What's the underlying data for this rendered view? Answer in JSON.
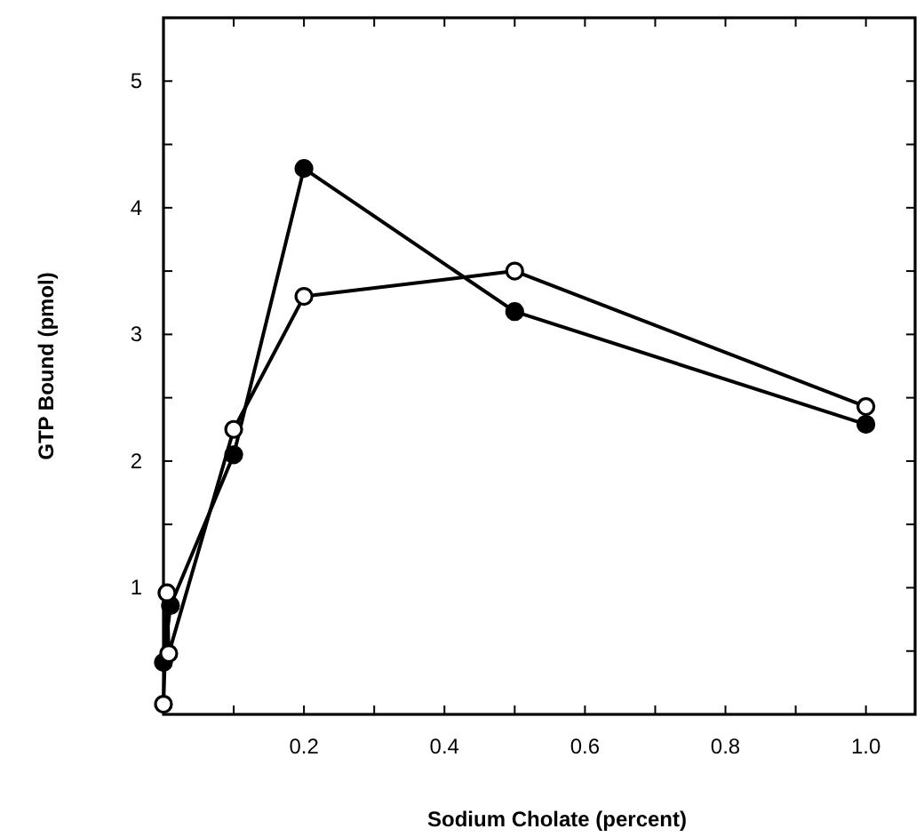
{
  "chart_data": {
    "type": "line",
    "xlabel": "Sodium Cholate (percent)",
    "ylabel": "GTP Bound (pmol)",
    "xlim": [
      0,
      1.07
    ],
    "ylim": [
      0,
      5.5
    ],
    "xticks": [
      {
        "value": 0.1,
        "label": null
      },
      0.2,
      {
        "value": 0.3,
        "label": null
      },
      0.4,
      {
        "value": 0.5,
        "label": null
      },
      0.6,
      {
        "value": 0.7,
        "label": null
      },
      0.8,
      {
        "value": 0.9,
        "label": null
      },
      {
        "value": 1,
        "label": "1.0"
      }
    ],
    "yticks": [
      {
        "value": 0.5,
        "label": null
      },
      1,
      {
        "value": 1.5,
        "label": null
      },
      2,
      {
        "value": 2.5,
        "label": null
      },
      3,
      {
        "value": 3.5,
        "label": null
      },
      4,
      {
        "value": 4.5,
        "label": null
      },
      5
    ],
    "grid": false,
    "series": [
      {
        "color": "#000000",
        "marker": "circle",
        "x": [
          0,
          0.01,
          0.1,
          0.2,
          0.5,
          1.0
        ],
        "values": [
          0.41,
          0.86,
          2.05,
          4.31,
          3.18,
          2.29
        ]
      },
      {
        "color": "#000000",
        "marker": "circle",
        "x": [
          0,
          0.005,
          0.0075,
          0.1,
          0.2,
          0.5,
          1.0
        ],
        "values": [
          0.08,
          0.96,
          0.48,
          2.25,
          3.3,
          3.5,
          2.43
        ]
      }
    ]
  }
}
